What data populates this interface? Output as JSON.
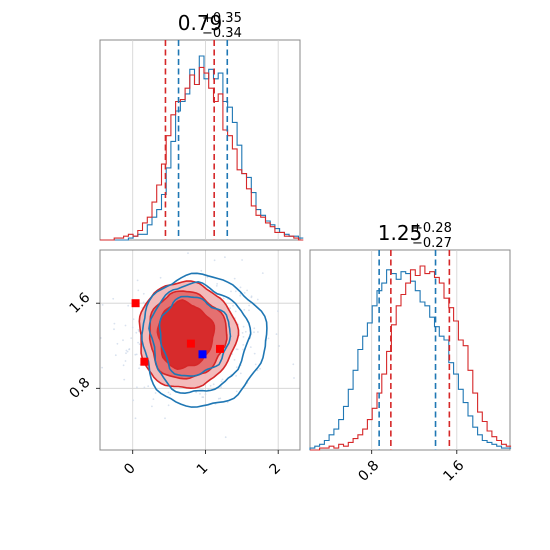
{
  "chart_data": {
    "type": "corner",
    "colors": {
      "red": "#d62728",
      "blue": "#1f77b4",
      "blue_marker": "#0000ff",
      "red_marker": "#ff0000"
    },
    "params": [
      {
        "title_value": "0.79",
        "title_plus": "+0.35",
        "title_minus": "−0.34",
        "range": [
          -0.45,
          2.3
        ],
        "hist_red": {
          "bin_start": -0.45,
          "bin_width": 0.065,
          "counts": [
            0,
            0,
            0,
            1,
            1,
            2,
            3,
            2,
            5,
            9,
            12,
            20,
            29,
            40,
            55,
            66,
            73,
            74,
            80,
            87,
            82,
            91,
            88,
            80,
            73,
            77,
            58,
            55,
            48,
            37,
            35,
            27,
            18,
            13,
            12,
            9,
            7,
            4,
            4,
            2,
            2,
            1,
            0
          ]
        },
        "hist_blue": {
          "bin_start": -0.45,
          "bin_width": 0.065,
          "counts": [
            0,
            0,
            0,
            0,
            0,
            0,
            1,
            2,
            3,
            3,
            8,
            12,
            16,
            24,
            38,
            52,
            68,
            73,
            77,
            90,
            82,
            97,
            85,
            90,
            85,
            88,
            73,
            70,
            62,
            50,
            35,
            33,
            25,
            16,
            13,
            10,
            8,
            6,
            4,
            3,
            2,
            2,
            1
          ]
        },
        "quantiles_red": [
          0.45,
          1.12
        ],
        "quantiles_blue": [
          0.63,
          1.3
        ]
      },
      {
        "title_value": "1.25",
        "title_plus": "+0.28",
        "title_minus": "−0.27",
        "range": [
          0.22,
          2.1
        ],
        "ticks": [
          0.8,
          1.6
        ],
        "tick_labels": [
          "0.8",
          "1.6"
        ],
        "hist_red": {
          "bin_start": 0.22,
          "bin_width": 0.045,
          "counts": [
            0,
            0,
            1,
            1,
            2,
            1,
            3,
            2,
            4,
            6,
            8,
            11,
            16,
            22,
            30,
            40,
            52,
            66,
            76,
            82,
            88,
            95,
            92,
            97,
            93,
            94,
            91,
            88,
            80,
            75,
            68,
            58,
            55,
            42,
            30,
            20,
            15,
            10,
            7,
            5,
            3,
            2
          ]
        },
        "hist_blue": {
          "bin_start": 0.22,
          "bin_width": 0.045,
          "counts": [
            1,
            2,
            3,
            5,
            8,
            11,
            16,
            23,
            32,
            42,
            53,
            60,
            67,
            76,
            84,
            88,
            95,
            93,
            90,
            94,
            93,
            89,
            84,
            78,
            76,
            70,
            65,
            60,
            58,
            46,
            40,
            32,
            25,
            18,
            12,
            8,
            5,
            4,
            3,
            2,
            1,
            1
          ]
        },
        "quantiles_red": [
          0.98,
          1.53
        ],
        "quantiles_blue": [
          0.87,
          1.4
        ]
      }
    ],
    "x_axis_ticks": [
      0,
      1,
      2
    ],
    "x_axis_tick_labels": [
      "0",
      "1",
      "2"
    ],
    "scatter_x_range": [
      -0.45,
      2.3
    ],
    "scatter_y_range": [
      0.22,
      2.1
    ],
    "y_axis_ticks": [
      0.8,
      1.6
    ],
    "y_axis_tick_labels": [
      "0.8",
      "1.6"
    ],
    "contours_red": [
      {
        "level": "outer",
        "center": [
          0.74,
          1.3
        ],
        "radii": [
          0.67,
          0.5
        ]
      },
      {
        "level": "middle",
        "center": [
          0.74,
          1.3
        ],
        "radii": [
          0.53,
          0.41
        ]
      },
      {
        "level": "inner",
        "center": [
          0.72,
          1.3
        ],
        "radii": [
          0.38,
          0.31
        ]
      }
    ],
    "contours_blue": [
      {
        "level": "outer",
        "center": [
          0.96,
          1.25
        ],
        "radii": [
          0.85,
          0.62
        ]
      },
      {
        "level": "middle",
        "center": [
          0.9,
          1.27
        ],
        "radii": [
          0.67,
          0.51
        ]
      },
      {
        "level": "inner",
        "center": [
          0.84,
          1.29
        ],
        "radii": [
          0.48,
          0.37
        ]
      }
    ],
    "markers_red": [
      [
        0.04,
        1.6
      ],
      [
        0.16,
        1.05
      ],
      [
        0.8,
        1.22
      ],
      [
        1.2,
        1.17
      ]
    ],
    "markers_blue": [
      [
        0.96,
        1.12
      ]
    ]
  }
}
